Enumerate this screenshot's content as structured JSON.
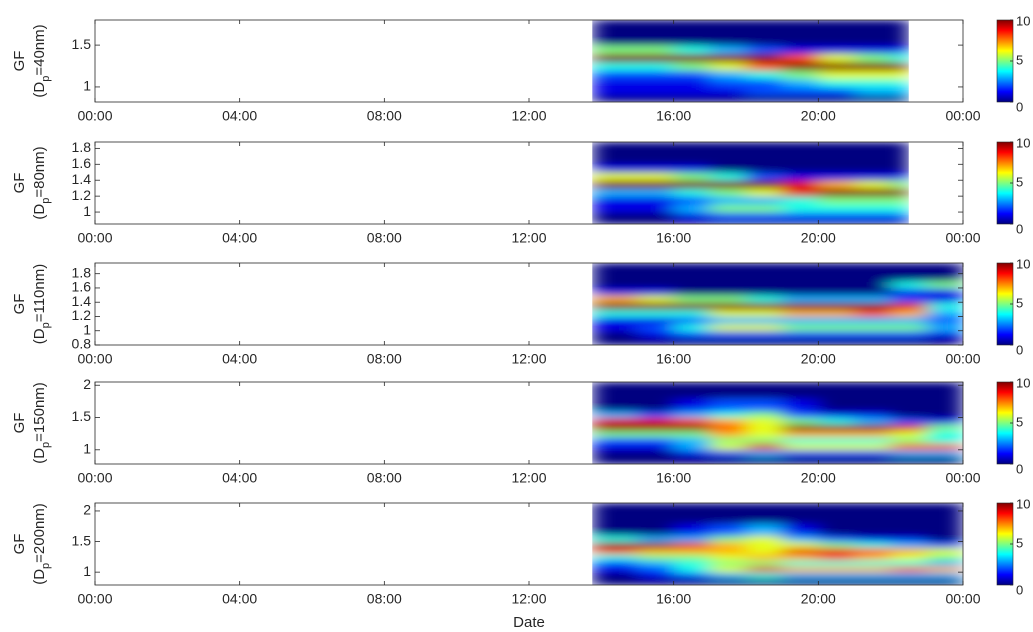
{
  "chart_data": [
    {
      "type": "heatmap",
      "ylabel": {
        "main": "GF",
        "prefix": "(D",
        "sub": "p",
        "suffix": "=40nm)"
      },
      "xlim": [
        0,
        24
      ],
      "xticks": [
        {
          "value": 0,
          "label": "00:00"
        },
        {
          "value": 4,
          "label": "04:00"
        },
        {
          "value": 8,
          "label": "08:00"
        },
        {
          "value": 12,
          "label": "12:00"
        },
        {
          "value": 16,
          "label": "16:00"
        },
        {
          "value": 20,
          "label": "20:00"
        },
        {
          "value": 24,
          "label": "00:00"
        }
      ],
      "ylim": [
        0.82,
        1.8
      ],
      "yticks": [
        1,
        1.5
      ],
      "x_bins": [
        13.75,
        15,
        16,
        17,
        18,
        19,
        20,
        21,
        22,
        22.5
      ],
      "y_bins": [
        0.82,
        0.9,
        1.0,
        1.1,
        1.2,
        1.3,
        1.4,
        1.5,
        1.6,
        1.8
      ],
      "z": [
        [
          0,
          0,
          0,
          0,
          0,
          0,
          0,
          0,
          0
        ],
        [
          1,
          1,
          1,
          1,
          2,
          2,
          2,
          3,
          3
        ],
        [
          1,
          1,
          1,
          2,
          2,
          3,
          4,
          4,
          4
        ],
        [
          2,
          2,
          2,
          3,
          4,
          5,
          6,
          6,
          6
        ],
        [
          4,
          4,
          5,
          6,
          8,
          10,
          10,
          10,
          10
        ],
        [
          10,
          10,
          10,
          10,
          10,
          8,
          6,
          5,
          4
        ],
        [
          5,
          5,
          4,
          3,
          2,
          1,
          1,
          1,
          1
        ],
        [
          0,
          0,
          0,
          0,
          0,
          0,
          0,
          0,
          0
        ],
        [
          0,
          0,
          0,
          0,
          0,
          0,
          0,
          0,
          0
        ]
      ],
      "colorbar": {
        "lim": [
          0,
          10
        ],
        "ticks": [
          0,
          5,
          10
        ]
      }
    },
    {
      "type": "heatmap",
      "ylabel": {
        "main": "GF",
        "prefix": "(D",
        "sub": "p",
        "suffix": "=80nm)"
      },
      "xlim": [
        0,
        24
      ],
      "xticks": [
        {
          "value": 0,
          "label": "00:00"
        },
        {
          "value": 4,
          "label": "04:00"
        },
        {
          "value": 8,
          "label": "08:00"
        },
        {
          "value": 12,
          "label": "12:00"
        },
        {
          "value": 16,
          "label": "16:00"
        },
        {
          "value": 20,
          "label": "20:00"
        },
        {
          "value": 24,
          "label": "00:00"
        }
      ],
      "ylim": [
        0.85,
        1.88
      ],
      "yticks": [
        1,
        1.2,
        1.4,
        1.6,
        1.8
      ],
      "x_bins": [
        13.75,
        15,
        16,
        17,
        18,
        19,
        20,
        21,
        22,
        22.5
      ],
      "y_bins": [
        0.85,
        0.9,
        1.0,
        1.1,
        1.2,
        1.3,
        1.4,
        1.5,
        1.6,
        1.88
      ],
      "z": [
        [
          0,
          0,
          0,
          0,
          0,
          0,
          0,
          0,
          0
        ],
        [
          0,
          0,
          1,
          2,
          2,
          2,
          2,
          2,
          2
        ],
        [
          1,
          1,
          3,
          5,
          5,
          4,
          4,
          4,
          4
        ],
        [
          1,
          1,
          2,
          3,
          3,
          4,
          5,
          5,
          5
        ],
        [
          3,
          3,
          4,
          5,
          6,
          9,
          10,
          10,
          10
        ],
        [
          10,
          10,
          10,
          10,
          10,
          9,
          7,
          6,
          5
        ],
        [
          6,
          6,
          5,
          4,
          2,
          1,
          1,
          1,
          1
        ],
        [
          1,
          1,
          1,
          0,
          0,
          0,
          0,
          0,
          0
        ],
        [
          0,
          0,
          0,
          0,
          0,
          0,
          0,
          0,
          0
        ]
      ],
      "colorbar": {
        "lim": [
          0,
          10
        ],
        "ticks": [
          0,
          5,
          10
        ]
      }
    },
    {
      "type": "heatmap",
      "ylabel": {
        "main": "GF",
        "prefix": "(D",
        "sub": "p",
        "suffix": "=110nm)"
      },
      "xlim": [
        0,
        24
      ],
      "xticks": [
        {
          "value": 0,
          "label": "00:00"
        },
        {
          "value": 4,
          "label": "04:00"
        },
        {
          "value": 8,
          "label": "08:00"
        },
        {
          "value": 12,
          "label": "12:00"
        },
        {
          "value": 16,
          "label": "16:00"
        },
        {
          "value": 20,
          "label": "20:00"
        },
        {
          "value": 24,
          "label": "00:00"
        }
      ],
      "ylim": [
        0.8,
        1.95
      ],
      "yticks": [
        0.8,
        1,
        1.2,
        1.4,
        1.6,
        1.8
      ],
      "x_bins": [
        13.75,
        15,
        16,
        17,
        18,
        19,
        20,
        21,
        22,
        23,
        24
      ],
      "y_bins": [
        0.8,
        0.9,
        1.0,
        1.1,
        1.2,
        1.3,
        1.4,
        1.5,
        1.6,
        1.7,
        1.95
      ],
      "z": [
        [
          0,
          0,
          0,
          0,
          0,
          0,
          0,
          0,
          0,
          0
        ],
        [
          0,
          1,
          2,
          2,
          2,
          2,
          2,
          2,
          2,
          1
        ],
        [
          1,
          2,
          4,
          6,
          6,
          5,
          5,
          5,
          5,
          3
        ],
        [
          1,
          1,
          2,
          3,
          3,
          3,
          3,
          3,
          3,
          2
        ],
        [
          4,
          4,
          4,
          6,
          6,
          7,
          7,
          8,
          7,
          3
        ],
        [
          10,
          10,
          10,
          10,
          10,
          10,
          10,
          10,
          9,
          4
        ],
        [
          7,
          6,
          5,
          5,
          4,
          3,
          3,
          3,
          2,
          1
        ],
        [
          1,
          1,
          0,
          0,
          0,
          0,
          0,
          0,
          1,
          1
        ],
        [
          0,
          0,
          0,
          0,
          0,
          0,
          0,
          0,
          4,
          5
        ],
        [
          0,
          0,
          0,
          0,
          0,
          0,
          0,
          0,
          0,
          0
        ]
      ],
      "colorbar": {
        "lim": [
          0,
          10
        ],
        "ticks": [
          0,
          5,
          10
        ]
      }
    },
    {
      "type": "heatmap",
      "ylabel": {
        "main": "GF",
        "prefix": "(D",
        "sub": "p",
        "suffix": "=150nm)"
      },
      "xlim": [
        0,
        24
      ],
      "xticks": [
        {
          "value": 0,
          "label": "00:00"
        },
        {
          "value": 4,
          "label": "04:00"
        },
        {
          "value": 8,
          "label": "08:00"
        },
        {
          "value": 12,
          "label": "12:00"
        },
        {
          "value": 16,
          "label": "16:00"
        },
        {
          "value": 20,
          "label": "20:00"
        },
        {
          "value": 24,
          "label": "00:00"
        }
      ],
      "ylim": [
        0.78,
        2.05
      ],
      "yticks": [
        1,
        1.5,
        2
      ],
      "x_bins": [
        13.75,
        15,
        16,
        17,
        18,
        19,
        20,
        21,
        22,
        23,
        24
      ],
      "y_bins": [
        0.78,
        0.9,
        1.0,
        1.1,
        1.2,
        1.3,
        1.4,
        1.5,
        1.6,
        1.8,
        2.05
      ],
      "z": [
        [
          0,
          0,
          0,
          0,
          0,
          0,
          0,
          0,
          0,
          0
        ],
        [
          0,
          0,
          1,
          2,
          3,
          2,
          2,
          2,
          3,
          3
        ],
        [
          1,
          1,
          3,
          6,
          9,
          6,
          6,
          6,
          8,
          8
        ],
        [
          2,
          2,
          3,
          5,
          5,
          4,
          4,
          4,
          5,
          4
        ],
        [
          5,
          5,
          5,
          7,
          6,
          7,
          7,
          7,
          6,
          4
        ],
        [
          10,
          10,
          10,
          8,
          6,
          10,
          10,
          10,
          9,
          5
        ],
        [
          9,
          9,
          8,
          7,
          6,
          5,
          4,
          3,
          2,
          1
        ],
        [
          3,
          2,
          3,
          4,
          5,
          2,
          1,
          1,
          0,
          0
        ],
        [
          0,
          0,
          1,
          2,
          2,
          1,
          0,
          0,
          0,
          0
        ],
        [
          0,
          0,
          0,
          0,
          0,
          0,
          0,
          0,
          0,
          0
        ]
      ],
      "colorbar": {
        "lim": [
          0,
          10
        ],
        "ticks": [
          0,
          5,
          10
        ]
      }
    },
    {
      "type": "heatmap",
      "ylabel": {
        "main": "GF",
        "prefix": "(D",
        "sub": "p",
        "suffix": "=200nm)"
      },
      "xlabel": "Date",
      "xlim": [
        0,
        24
      ],
      "xticks": [
        {
          "value": 0,
          "label": "00:00"
        },
        {
          "value": 4,
          "label": "04:00"
        },
        {
          "value": 8,
          "label": "08:00"
        },
        {
          "value": 12,
          "label": "12:00"
        },
        {
          "value": 16,
          "label": "16:00"
        },
        {
          "value": 20,
          "label": "20:00"
        },
        {
          "value": 24,
          "label": "00:00"
        }
      ],
      "ylim": [
        0.79,
        2.13
      ],
      "yticks": [
        1,
        1.5,
        2
      ],
      "x_bins": [
        13.75,
        15,
        16,
        17,
        18,
        19,
        20,
        21,
        22,
        23,
        24
      ],
      "y_bins": [
        0.79,
        0.9,
        1.0,
        1.1,
        1.2,
        1.3,
        1.4,
        1.5,
        1.6,
        1.8,
        2.13
      ],
      "z": [
        [
          0,
          0,
          0,
          0,
          0,
          0,
          0,
          0,
          0,
          0
        ],
        [
          0,
          1,
          2,
          3,
          4,
          3,
          3,
          3,
          3,
          3
        ],
        [
          1,
          2,
          4,
          6,
          9,
          7,
          7,
          7,
          8,
          7
        ],
        [
          2,
          3,
          4,
          5,
          5,
          4,
          4,
          4,
          4,
          3
        ],
        [
          4,
          5,
          5,
          6,
          7,
          7,
          8,
          7,
          6,
          5
        ],
        [
          8,
          7,
          7,
          7,
          6,
          9,
          9,
          8,
          7,
          6
        ],
        [
          10,
          10,
          9,
          7,
          6,
          6,
          5,
          4,
          3,
          2
        ],
        [
          4,
          3,
          3,
          5,
          6,
          3,
          2,
          1,
          1,
          0
        ],
        [
          0,
          0,
          1,
          2,
          3,
          1,
          0,
          0,
          0,
          0
        ],
        [
          0,
          0,
          0,
          0,
          0,
          0,
          0,
          0,
          0,
          0
        ]
      ],
      "colorbar": {
        "lim": [
          0,
          10
        ],
        "ticks": [
          0,
          5,
          10
        ]
      }
    }
  ]
}
